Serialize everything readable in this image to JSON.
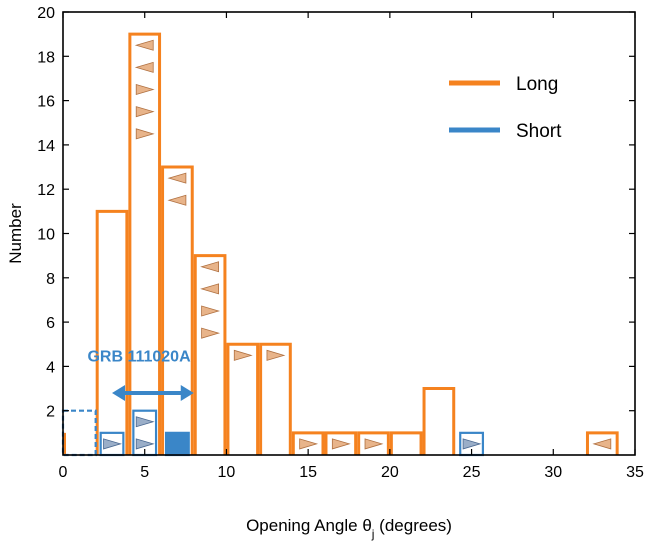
{
  "chart_data": {
    "type": "bar",
    "xlabel": "Opening Angle θ",
    "xlabel_subscript": "j",
    "xlabel_suffix": " (degrees)",
    "ylabel": "Number",
    "xlim": [
      0,
      35
    ],
    "ylim": [
      0,
      20
    ],
    "xticks": [
      0,
      5,
      10,
      15,
      20,
      25,
      30,
      35
    ],
    "yticks": [
      2,
      4,
      6,
      8,
      10,
      12,
      14,
      16,
      18,
      20
    ],
    "grid": false,
    "legend_position": "top-right",
    "colors": {
      "long": "#f5821f",
      "short": "#3a86c8",
      "arrow_fill": "#e8b48a",
      "short_arrow_fill": "#9aaec8"
    },
    "series": [
      {
        "name": "Long",
        "color": "#f5821f",
        "bin_width": 2,
        "bins": [
          {
            "x0": 2,
            "x1": 4,
            "value": 11
          },
          {
            "x0": 4,
            "x1": 6,
            "value": 19
          },
          {
            "x0": 6,
            "x1": 8,
            "value": 13
          },
          {
            "x0": 8,
            "x1": 10,
            "value": 9
          },
          {
            "x0": 10,
            "x1": 12,
            "value": 5
          },
          {
            "x0": 12,
            "x1": 14,
            "value": 5
          },
          {
            "x0": 14,
            "x1": 16,
            "value": 1
          },
          {
            "x0": 16,
            "x1": 18,
            "value": 1
          },
          {
            "x0": 18,
            "x1": 20,
            "value": 1
          },
          {
            "x0": 20,
            "x1": 22,
            "value": 1
          },
          {
            "x0": 22,
            "x1": 24,
            "value": 3
          },
          {
            "x0": 32,
            "x1": 34,
            "value": 1
          }
        ],
        "extra_edges": [
          {
            "x": 0,
            "value": 1
          }
        ],
        "limit_arrows": [
          {
            "x": 5,
            "y": 18.5,
            "dir": "left"
          },
          {
            "x": 5,
            "y": 17.5,
            "dir": "left"
          },
          {
            "x": 5,
            "y": 16.5,
            "dir": "right"
          },
          {
            "x": 5,
            "y": 15.5,
            "dir": "right"
          },
          {
            "x": 5,
            "y": 14.5,
            "dir": "right"
          },
          {
            "x": 7,
            "y": 12.5,
            "dir": "left"
          },
          {
            "x": 7,
            "y": 11.5,
            "dir": "left"
          },
          {
            "x": 9,
            "y": 8.5,
            "dir": "left"
          },
          {
            "x": 9,
            "y": 7.5,
            "dir": "left"
          },
          {
            "x": 9,
            "y": 6.5,
            "dir": "right"
          },
          {
            "x": 9,
            "y": 5.5,
            "dir": "right"
          },
          {
            "x": 11,
            "y": 4.5,
            "dir": "right"
          },
          {
            "x": 13,
            "y": 4.5,
            "dir": "right"
          },
          {
            "x": 15,
            "y": 0.5,
            "dir": "right"
          },
          {
            "x": 17,
            "y": 0.5,
            "dir": "right"
          },
          {
            "x": 19,
            "y": 0.5,
            "dir": "right"
          },
          {
            "x": 33,
            "y": 0.5,
            "dir": "left"
          }
        ]
      },
      {
        "name": "Short",
        "color": "#3a86c8",
        "bins": [
          {
            "x0": 2,
            "x1": 4,
            "value": 1,
            "style": "outline"
          },
          {
            "x0": 4,
            "x1": 6,
            "value": 2,
            "style": "outline"
          },
          {
            "x0": 6,
            "x1": 8,
            "value": 1,
            "style": "filled"
          },
          {
            "x0": 24,
            "x1": 26,
            "value": 1,
            "style": "outline"
          },
          {
            "x0": 0,
            "x1": 2,
            "value": 2,
            "style": "dashed"
          }
        ],
        "limit_arrows": [
          {
            "x": 3,
            "y": 0.5,
            "dir": "right"
          },
          {
            "x": 5,
            "y": 1.5,
            "dir": "right"
          },
          {
            "x": 5,
            "y": 0.5,
            "dir": "right"
          },
          {
            "x": 25,
            "y": 0.5,
            "dir": "right"
          }
        ]
      }
    ],
    "annotations": [
      {
        "text": "GRB 111020A",
        "x": 6,
        "y": 4.5,
        "arrow_from": 3,
        "arrow_to": 8,
        "arrow_y": 2.8
      }
    ]
  }
}
